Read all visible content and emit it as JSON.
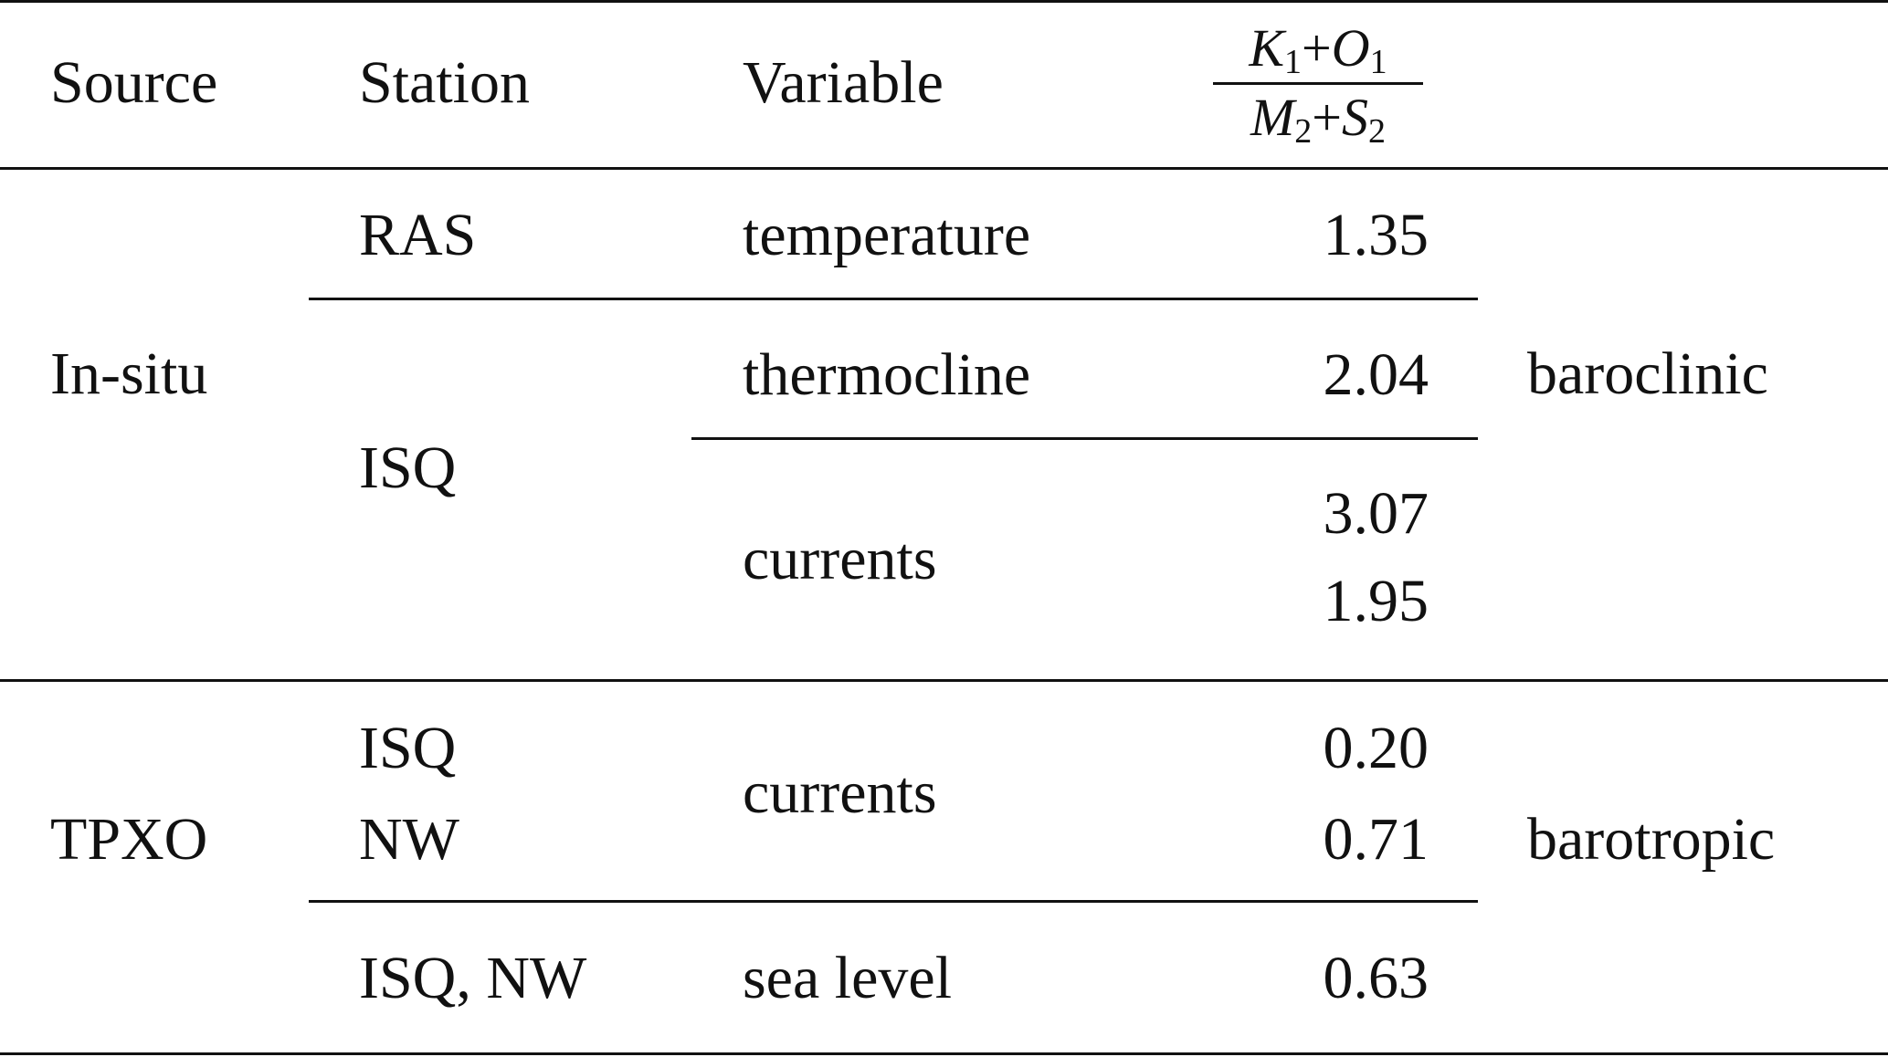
{
  "header": {
    "source": "Source",
    "station": "Station",
    "variable": "Variable",
    "ratio_numerator": {
      "a": "K",
      "a_sub": "1",
      "op": "+",
      "b": "O",
      "b_sub": "1"
    },
    "ratio_denominator": {
      "a": "M",
      "a_sub": "2",
      "op": "+",
      "b": "S",
      "b_sub": "2"
    }
  },
  "groups": [
    {
      "source": "In-situ",
      "type": "baroclinic",
      "rows": [
        {
          "station": "RAS",
          "variable": "temperature",
          "values": [
            "1.35"
          ]
        },
        {
          "station": "ISQ",
          "variable": "thermocline",
          "values": [
            "2.04"
          ]
        },
        {
          "station": "",
          "variable": "currents",
          "values": [
            "3.07",
            "1.95"
          ]
        }
      ]
    },
    {
      "source": "TPXO",
      "type": "barotropic",
      "rows": [
        {
          "station_lines": [
            "ISQ",
            "NW"
          ],
          "variable": "currents",
          "values": [
            "0.20",
            "0.71"
          ]
        },
        {
          "station": "ISQ, NW",
          "variable": "sea level",
          "values": [
            "0.63"
          ]
        }
      ]
    }
  ]
}
